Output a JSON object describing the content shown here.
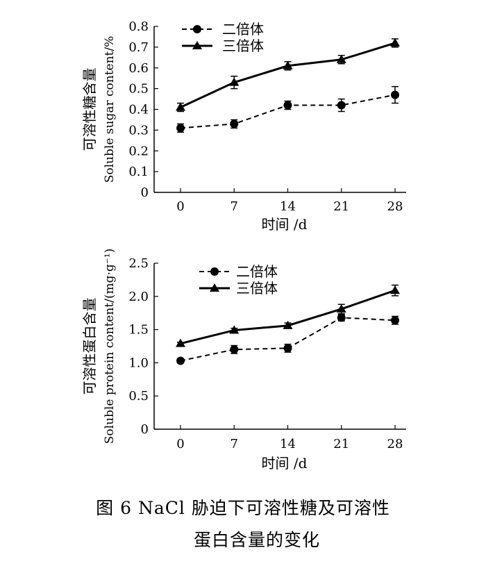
{
  "chart_data": [
    {
      "type": "line",
      "ylabel_cn": "可溶性糖含量",
      "ylabel_en": "Soluble sugar content/%",
      "xlabel": "时间 /d",
      "categories": [
        "0",
        "7",
        "14",
        "21",
        "28"
      ],
      "ylim": [
        0,
        0.8
      ],
      "yticks": [
        "0",
        "0.1",
        "0.2",
        "0.3",
        "0.4",
        "0.5",
        "0.6",
        "0.7",
        "0.8"
      ],
      "legend_position": "top-left",
      "grid": false,
      "series": [
        {
          "name": "二倍体",
          "marker": "circle",
          "line": "dashed",
          "values": [
            0.31,
            0.33,
            0.42,
            0.42,
            0.47
          ],
          "errors": [
            0.02,
            0.02,
            0.02,
            0.03,
            0.04
          ]
        },
        {
          "name": "三倍体",
          "marker": "triangle",
          "line": "solid",
          "values": [
            0.41,
            0.53,
            0.61,
            0.64,
            0.72
          ],
          "errors": [
            0.02,
            0.03,
            0.02,
            0.02,
            0.02
          ]
        }
      ]
    },
    {
      "type": "line",
      "ylabel_cn": "可溶性蛋白含量",
      "ylabel_en": "Soluble protein content/(mg·g⁻¹)",
      "xlabel": "时间 /d",
      "categories": [
        "0",
        "7",
        "14",
        "21",
        "28"
      ],
      "ylim": [
        0,
        2.5
      ],
      "yticks": [
        "0",
        "0.5",
        "1.0",
        "1.5",
        "2.0",
        "2.5"
      ],
      "legend_position": "top-left",
      "grid": false,
      "series": [
        {
          "name": "二倍体",
          "marker": "circle",
          "line": "dashed",
          "values": [
            1.03,
            1.2,
            1.22,
            1.68,
            1.64
          ],
          "errors": [
            0.03,
            0.06,
            0.06,
            0.05,
            0.06
          ]
        },
        {
          "name": "三倍体",
          "marker": "triangle",
          "line": "solid",
          "values": [
            1.29,
            1.49,
            1.56,
            1.81,
            2.09
          ],
          "errors": [
            0.02,
            0.03,
            0.04,
            0.07,
            0.08
          ]
        }
      ]
    }
  ],
  "caption": {
    "line1": "图 6   NaCl 胁迫下可溶性糖及可溶性",
    "line2": "蛋白含量的变化"
  }
}
